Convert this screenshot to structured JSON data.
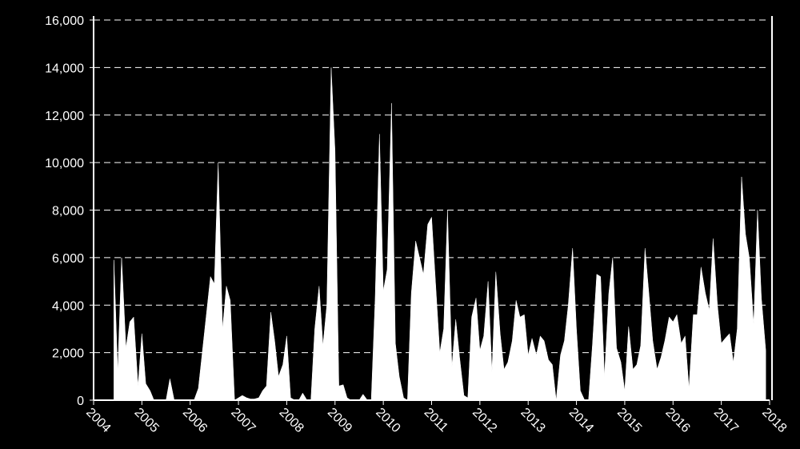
{
  "chart_data": {
    "type": "area",
    "color": "#ffffff",
    "background": "#000000",
    "grid": true,
    "x": [
      2004.42,
      2004.5,
      2004.58,
      2004.67,
      2004.75,
      2004.83,
      2004.92,
      2005,
      2005.08,
      2005.17,
      2005.25,
      2005.33,
      2005.42,
      2005.5,
      2005.58,
      2005.67,
      2005.75,
      2005.83,
      2005.92,
      2006,
      2006.08,
      2006.17,
      2006.25,
      2006.33,
      2006.42,
      2006.5,
      2006.58,
      2006.67,
      2006.75,
      2006.83,
      2006.92,
      2007,
      2007.08,
      2007.17,
      2007.25,
      2007.33,
      2007.42,
      2007.5,
      2007.58,
      2007.67,
      2007.75,
      2007.83,
      2007.92,
      2008,
      2008.08,
      2008.17,
      2008.25,
      2008.33,
      2008.42,
      2008.5,
      2008.58,
      2008.67,
      2008.75,
      2008.83,
      2008.92,
      2009,
      2009.08,
      2009.17,
      2009.25,
      2009.33,
      2009.42,
      2009.5,
      2009.58,
      2009.67,
      2009.75,
      2009.83,
      2009.92,
      2010,
      2010.08,
      2010.17,
      2010.25,
      2010.33,
      2010.42,
      2010.5,
      2010.58,
      2010.67,
      2010.75,
      2010.83,
      2010.92,
      2011,
      2011.08,
      2011.17,
      2011.25,
      2011.33,
      2011.42,
      2011.5,
      2011.58,
      2011.67,
      2011.75,
      2011.83,
      2011.92,
      2012,
      2012.08,
      2012.17,
      2012.25,
      2012.33,
      2012.42,
      2012.5,
      2012.58,
      2012.67,
      2012.75,
      2012.83,
      2012.92,
      2013,
      2013.08,
      2013.17,
      2013.25,
      2013.33,
      2013.42,
      2013.5,
      2013.58,
      2013.67,
      2013.75,
      2013.83,
      2013.92,
      2014,
      2014.08,
      2014.17,
      2014.25,
      2014.33,
      2014.42,
      2014.5,
      2014.58,
      2014.67,
      2014.75,
      2014.83,
      2014.92,
      2015,
      2015.08,
      2015.17,
      2015.25,
      2015.33,
      2015.42,
      2015.5,
      2015.58,
      2015.67,
      2015.75,
      2015.83,
      2015.92,
      2016,
      2016.08,
      2016.17,
      2016.25,
      2016.33,
      2016.42,
      2016.5,
      2016.58,
      2016.67,
      2016.75,
      2016.83,
      2016.92,
      2017,
      2017.08,
      2017.17,
      2017.25,
      2017.33,
      2017.42,
      2017.5,
      2017.58,
      2017.67,
      2017.75,
      2017.83,
      2017.92
    ],
    "values": [
      5900,
      1200,
      6000,
      2200,
      3300,
      3500,
      600,
      2800,
      700,
      400,
      0,
      0,
      0,
      0,
      900,
      0,
      0,
      0,
      0,
      0,
      0,
      500,
      2000,
      3500,
      5200,
      4900,
      10000,
      3000,
      4800,
      4200,
      0,
      100,
      200,
      100,
      50,
      50,
      100,
      400,
      600,
      3700,
      2500,
      1000,
      1500,
      2700,
      100,
      0,
      0,
      300,
      0,
      0,
      3000,
      4800,
      2300,
      4000,
      14000,
      10500,
      600,
      650,
      100,
      0,
      0,
      0,
      250,
      0,
      0,
      4200,
      11200,
      4600,
      5500,
      12500,
      2400,
      1000,
      100,
      0,
      4500,
      6700,
      6000,
      5300,
      7400,
      7700,
      5000,
      2000,
      3000,
      8000,
      1400,
      3400,
      1800,
      200,
      100,
      3500,
      4300,
      2100,
      2700,
      5000,
      1200,
      5400,
      2800,
      1300,
      1600,
      2500,
      4200,
      3500,
      3600,
      1900,
      2600,
      1900,
      2700,
      2500,
      1700,
      1500,
      0,
      1900,
      2500,
      4000,
      6400,
      3000,
      400,
      0,
      0,
      2300,
      5300,
      5200,
      1000,
      4500,
      6000,
      2200,
      1600,
      400,
      3100,
      1300,
      1500,
      2300,
      6400,
      4500,
      2500,
      1300,
      1800,
      2500,
      3500,
      3300,
      3600,
      2400,
      2700,
      500,
      3600,
      3600,
      5600,
      4500,
      3800,
      6800,
      4000,
      2400,
      2600,
      2800,
      1600,
      3000,
      9400,
      7000,
      6000,
      3200,
      8000,
      4300,
      2100
    ],
    "xlim": [
      2004,
      2018
    ],
    "xticks": [
      2004,
      2005,
      2006,
      2007,
      2008,
      2009,
      2010,
      2011,
      2012,
      2013,
      2014,
      2015,
      2016,
      2017,
      2018
    ],
    "ylim": [
      0,
      16000
    ],
    "yticks": [
      0,
      {
        "value": 2000,
        "label": "2,000"
      },
      {
        "value": 4000,
        "label": "4,000"
      },
      {
        "value": 6000,
        "label": "6,000"
      },
      {
        "value": 8000,
        "label": "8,000"
      },
      {
        "value": 10000,
        "label": "10,000"
      },
      {
        "value": 12000,
        "label": "12,000"
      },
      {
        "value": 14000,
        "label": "14,000"
      },
      {
        "value": 16000,
        "label": "16,000"
      }
    ]
  }
}
